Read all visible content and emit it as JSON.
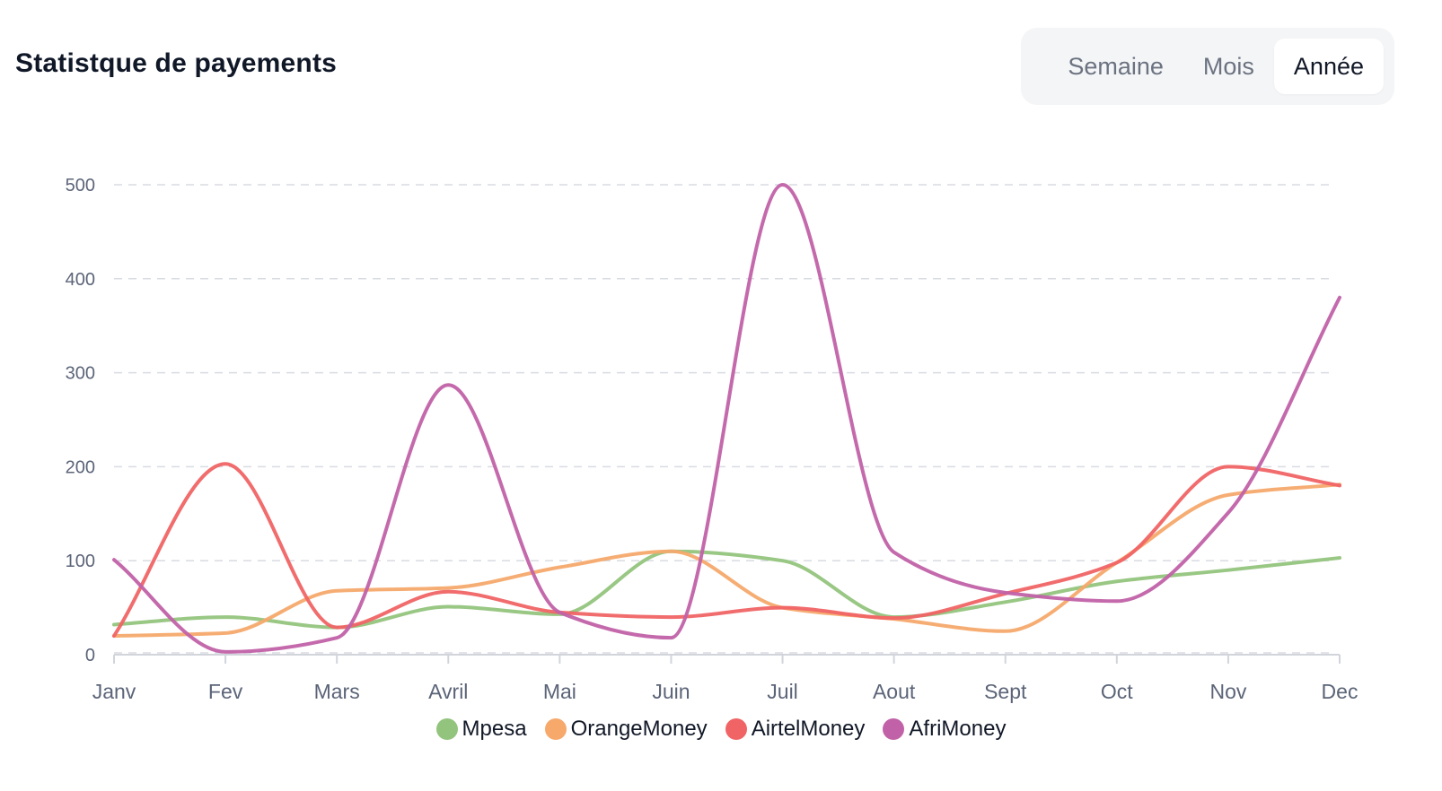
{
  "header": {
    "title": "Statistque de payements"
  },
  "period_selector": {
    "options": [
      "Semaine",
      "Mois",
      "Année"
    ],
    "selected": "Année"
  },
  "colors": {
    "Mpesa": "#93c47d",
    "OrangeMoney": "#f6a96b",
    "AirtelMoney": "#f06465",
    "AfriMoney": "#c162a8",
    "grid": "#d8dbe2",
    "axis": "#d1d5db",
    "tick_text": "#5b6478"
  },
  "chart_data": {
    "type": "line",
    "categories": [
      "Janv",
      "Fev",
      "Mars",
      "Avril",
      "Mai",
      "Juin",
      "Juil",
      "Aout",
      "Sept",
      "Oct",
      "Nov",
      "Dec"
    ],
    "ylim": [
      0,
      500
    ],
    "yticks": [
      0,
      100,
      200,
      300,
      400,
      500
    ],
    "grid": true,
    "legend_position": "bottom",
    "series": [
      {
        "name": "Mpesa",
        "values": [
          32,
          40,
          29,
          51,
          43,
          110,
          100,
          40,
          56,
          78,
          90,
          103
        ]
      },
      {
        "name": "OrangeMoney",
        "values": [
          20,
          23,
          68,
          71,
          93,
          110,
          50,
          38,
          25,
          98,
          170,
          181
        ]
      },
      {
        "name": "AirtelMoney",
        "values": [
          20,
          203,
          29,
          67,
          45,
          40,
          50,
          39,
          65,
          98,
          200,
          180
        ]
      },
      {
        "name": "AfriMoney",
        "values": [
          101,
          3,
          18,
          287,
          45,
          18,
          500,
          109,
          66,
          57,
          151,
          380
        ]
      }
    ]
  }
}
